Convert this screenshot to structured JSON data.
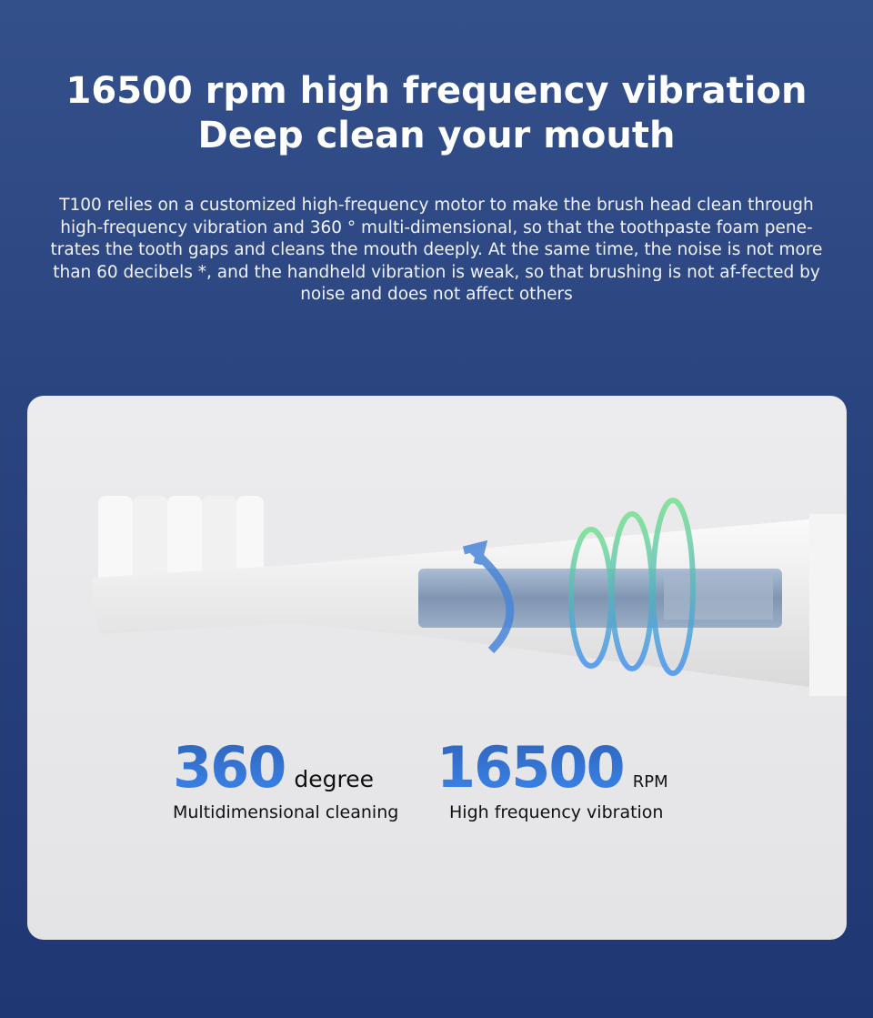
{
  "header": {
    "title_line1": "16500 rpm high frequency vibration",
    "title_line2": "Deep clean your mouth",
    "description": "T100 relies on a customized high-frequency motor to make the brush head clean through high-frequency vibration and 360 ° multi-dimensional, so that the toothpaste foam pene-trates the tooth gaps and cleans the mouth deeply. At the same time, the noise is not more than 60 decibels *, and the handheld vibration is weak, so that brushing is not af-fected by noise and does not affect others"
  },
  "stats": [
    {
      "value": "360",
      "unit": "degree",
      "caption": "Multidimensional cleaning"
    },
    {
      "value": "16500",
      "unit": "RPM",
      "caption": "High frequency vibration"
    }
  ],
  "colors": {
    "background": "#2a4480",
    "card": "#e6e6e8",
    "accent_blue": "#3b7fe0",
    "vibration_green": "#5fd38a"
  }
}
